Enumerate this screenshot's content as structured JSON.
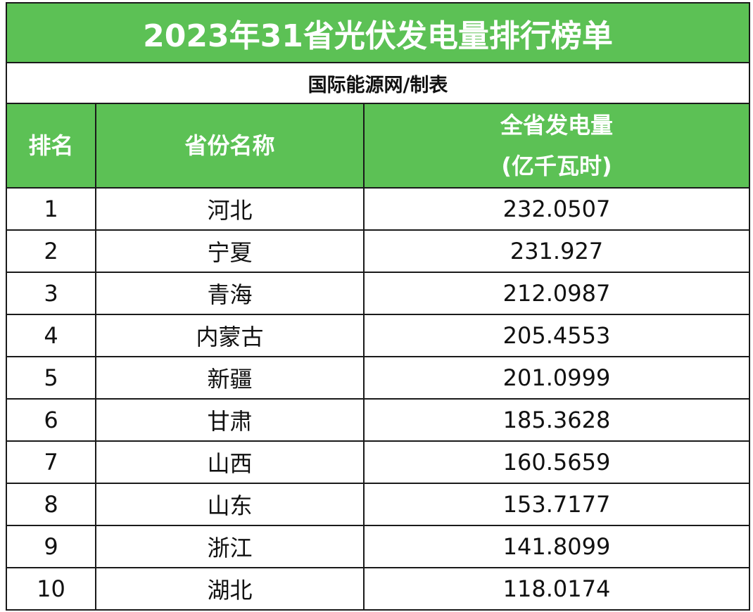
{
  "title": "2023年31省光伏发电量排行榜单",
  "subtitle": "国际能源网/制表",
  "colors": {
    "header_green": "#5cc155",
    "header_text": "#ffffff",
    "border": "#1a1a1a",
    "body_text": "#111111"
  },
  "columns": {
    "rank": "排名",
    "province": "省份名称",
    "generation_line1": "全省发电量",
    "generation_line2": "(亿千瓦时)"
  },
  "rows": [
    {
      "rank": "1",
      "province": "河北",
      "value": "232.0507"
    },
    {
      "rank": "2",
      "province": "宁夏",
      "value": "231.927"
    },
    {
      "rank": "3",
      "province": "青海",
      "value": "212.0987"
    },
    {
      "rank": "4",
      "province": "内蒙古",
      "value": "205.4553"
    },
    {
      "rank": "5",
      "province": "新疆",
      "value": "201.0999"
    },
    {
      "rank": "6",
      "province": "甘肃",
      "value": "185.3628"
    },
    {
      "rank": "7",
      "province": "山西",
      "value": "160.5659"
    },
    {
      "rank": "8",
      "province": "山东",
      "value": "153.7177"
    },
    {
      "rank": "9",
      "province": "浙江",
      "value": "141.8099"
    },
    {
      "rank": "10",
      "province": "湖北",
      "value": "118.0174"
    }
  ]
}
